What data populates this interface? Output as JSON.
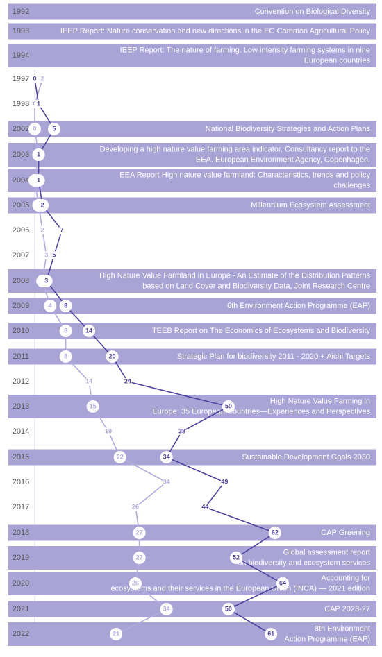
{
  "chart_data": {
    "type": "timeline-line",
    "categories": [
      "1992",
      "1993",
      "1994",
      "1997",
      "1998",
      "2002",
      "2003",
      "2004",
      "2005",
      "2006",
      "2007",
      "2008",
      "2009",
      "2010",
      "2011",
      "2012",
      "2013",
      "2014",
      "2015",
      "2016",
      "2017",
      "2018",
      "2019",
      "2020",
      "2021",
      "2022"
    ],
    "event_labels": [
      [
        "Convention on Biological Diversity"
      ],
      [
        "IEEP Report: Nature conservation and new directions in the EC Common Agricultural Policy"
      ],
      [
        "IEEP Report: The nature of farming. Low intensity farming systems in nine",
        "European countries"
      ],
      null,
      null,
      [
        "National Biodiversity Strategies and Action Plans"
      ],
      [
        "Developing a high nature value farming area indicator. Consultancy report to the",
        "EEA. European Environment Agency, Copenhagen."
      ],
      [
        "EEA Report High nature value farmland: Characteristics, trends and policy",
        "challenges"
      ],
      [
        "Millennium Ecosystem Assessment"
      ],
      null,
      null,
      [
        "High Nature Value Farmland in Europe - An Estimate of the Distribution Patterns",
        "based on Land Cover and Biodiversity Data, Joint Research Centre"
      ],
      [
        "6th Environment Action Programme (EAP)"
      ],
      [
        "TEEB Report on  The Economics of Ecosystems and Biodiversity"
      ],
      [
        "Strategic Plan for biodiversity 2011 - 2020 + Aichi Targets"
      ],
      null,
      [
        "High Nature Value Farming in",
        "Europe: 35 European Countries—Experiences and Perspectives"
      ],
      null,
      [
        "Sustainable Development Goals 2030"
      ],
      null,
      null,
      [
        "CAP Greening"
      ],
      [
        "Global assessment report",
        "on biodiversity and ecosystem services"
      ],
      [
        "Accounting for",
        "ecosystems and their services in the European Union (INCA) — 2021 edition"
      ],
      [
        "CAP 2023-27"
      ],
      [
        "8th Environment",
        "Action Programme (EAP)"
      ]
    ],
    "series": [
      {
        "color": "#b3acdf",
        "values": [
          null,
          null,
          null,
          2,
          0,
          0,
          1,
          0,
          1,
          2,
          3,
          2,
          4,
          8,
          8,
          14,
          15,
          19,
          22,
          34,
          26,
          27,
          27,
          26,
          34,
          21
        ]
      },
      {
        "color": "#4e429e",
        "values": [
          null,
          null,
          null,
          0,
          1,
          5,
          1,
          1,
          2,
          7,
          5,
          3,
          8,
          14,
          20,
          24,
          50,
          38,
          34,
          49,
          44,
          62,
          52,
          64,
          50,
          61
        ]
      }
    ],
    "xlim": [
      0,
      64
    ]
  }
}
